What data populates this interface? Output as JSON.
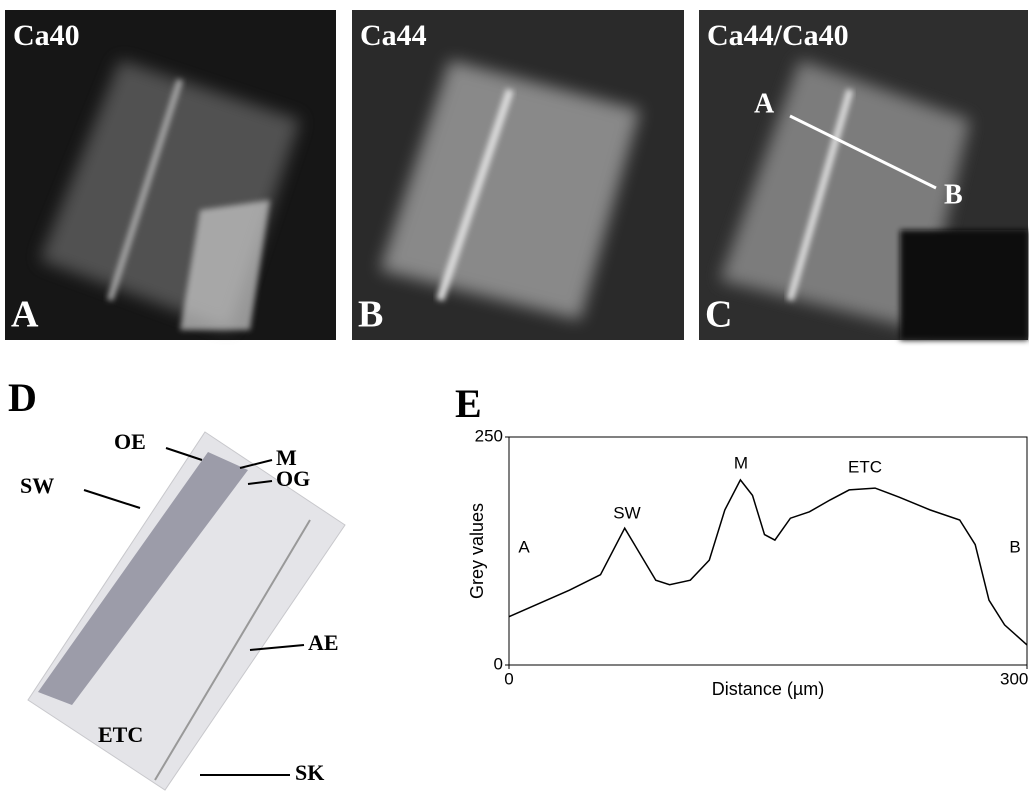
{
  "panels": [
    {
      "letter": "A",
      "label": "Ca40"
    },
    {
      "letter": "B",
      "label": "Ca44"
    },
    {
      "letter": "C",
      "label": "Ca44/Ca40",
      "line_start": "A",
      "line_end": "B"
    }
  ],
  "panel_d": {
    "letter": "D",
    "annotations": [
      "OE",
      "M",
      "OG",
      "SW",
      "AE",
      "ETC",
      "SK"
    ]
  },
  "chart_data": {
    "type": "line",
    "panel_letter": "E",
    "xlabel": "Distance (µm)",
    "ylabel": "Grey values",
    "annotations": [
      "A",
      "SW",
      "M",
      "ETC",
      "B"
    ],
    "color": "#000000",
    "x": [
      0,
      35,
      53,
      67,
      85,
      93,
      105,
      116,
      125,
      134,
      141,
      148,
      154,
      163,
      174,
      186,
      197,
      212,
      226,
      244,
      261,
      270,
      278,
      287,
      300
    ],
    "values": [
      53,
      82,
      99,
      150,
      93,
      88,
      93,
      115,
      170,
      203,
      186,
      143,
      137,
      161,
      168,
      181,
      192,
      194,
      184,
      170,
      159,
      132,
      71,
      44,
      22
    ],
    "xlim": [
      0,
      300
    ],
    "ylim": [
      0,
      250
    ],
    "xticks": [
      0,
      300
    ],
    "yticks": [
      0,
      250
    ]
  }
}
